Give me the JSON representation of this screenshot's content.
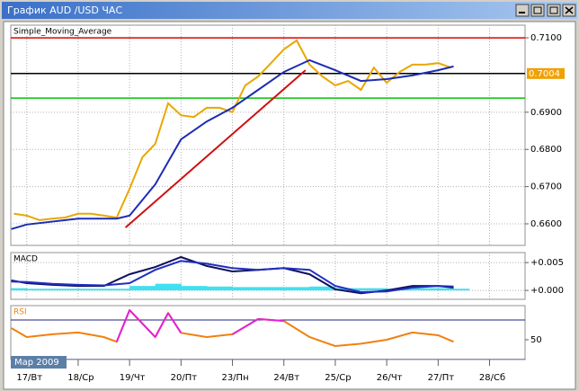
{
  "window": {
    "title": "График AUD /USD ЧАС"
  },
  "chart_data": [
    {
      "type": "line",
      "title": "Simple_Moving_Average",
      "period_label": "Мар 2009",
      "grid": true,
      "xlim": [
        -0.31,
        9.69
      ],
      "xticks": [
        {
          "value": 0,
          "label": "17/Вт"
        },
        {
          "value": 1,
          "label": "18/Ср"
        },
        {
          "value": 2,
          "label": "19/Чт"
        },
        {
          "value": 3,
          "label": "20/Пт"
        },
        {
          "value": 4,
          "label": "23/Пн"
        },
        {
          "value": 5,
          "label": "24/Вт"
        },
        {
          "value": 6,
          "label": "25/Ср"
        },
        {
          "value": 7,
          "label": "26/Чт"
        },
        {
          "value": 8,
          "label": "27/Пт"
        },
        {
          "value": 9,
          "label": "28/Сб"
        }
      ],
      "ylim": [
        0.6542,
        0.7134
      ],
      "yticks": [
        {
          "value": 0.71,
          "label": "0.7100"
        },
        {
          "value": 0.69,
          "label": "0.6900"
        },
        {
          "value": 0.68,
          "label": "0.6800"
        },
        {
          "value": 0.67,
          "label": "0.6700"
        },
        {
          "value": 0.66,
          "label": "0.6600"
        }
      ],
      "hlines": [
        {
          "value": 0.71,
          "color": "#e00000"
        },
        {
          "value": 0.7004,
          "color": "#000000",
          "marker": true
        },
        {
          "value": 0.6938,
          "color": "#00c000"
        }
      ],
      "series": [
        {
          "color": "#e8a800",
          "style": "line",
          "x": [
            -0.25,
            0,
            0.25,
            0.5,
            0.75,
            1,
            1.25,
            1.5,
            1.75,
            2,
            2.25,
            2.5,
            2.75,
            3,
            3.25,
            3.5,
            3.75,
            4,
            4.25,
            4.5,
            4.75,
            5,
            5.25,
            5.5,
            5.75,
            6,
            6.25,
            6.5,
            6.75,
            7,
            7.25,
            7.5,
            7.75,
            8,
            8.25
          ],
          "values": [
            0.6627,
            0.6622,
            0.661,
            0.6614,
            0.6617,
            0.6627,
            0.6627,
            0.6622,
            0.6617,
            0.6694,
            0.6779,
            0.6815,
            0.6924,
            0.6892,
            0.6887,
            0.6912,
            0.6912,
            0.69,
            0.6972,
            0.6996,
            0.7032,
            0.7069,
            0.7093,
            0.7028,
            0.6996,
            0.6972,
            0.6984,
            0.696,
            0.702,
            0.6979,
            0.7008,
            0.7028,
            0.7028,
            0.7032,
            0.702
          ]
        },
        {
          "color": "#1c2cb4",
          "style": "line",
          "x": [
            -0.3,
            0,
            1,
            1.75,
            2,
            2.5,
            3,
            3.5,
            4,
            4.5,
            5,
            5.5,
            6,
            6.5,
            7,
            7.5,
            8,
            8.3
          ],
          "values": [
            0.6586,
            0.6598,
            0.6614,
            0.6614,
            0.6622,
            0.6706,
            0.6827,
            0.6875,
            0.6912,
            0.696,
            0.7008,
            0.704,
            0.7013,
            0.6984,
            0.6989,
            0.6999,
            0.7013,
            0.7023
          ]
        },
        {
          "color": "#d01010",
          "style": "line",
          "x": [
            1.92,
            5.42
          ],
          "values": [
            0.659,
            0.7013
          ]
        }
      ]
    },
    {
      "type": "line",
      "title": "MACD",
      "grid": true,
      "ylim": [
        -0.0016,
        0.0068
      ],
      "yticks": [
        {
          "value": 0.005,
          "label": "+0.005"
        },
        {
          "value": 0,
          "label": "+0.000"
        }
      ],
      "x": [
        -0.3,
        0,
        0.5,
        1,
        1.5,
        2,
        2.5,
        3,
        3.5,
        4,
        4.5,
        5,
        5.5,
        6,
        6.5,
        7,
        7.5,
        8,
        8.3
      ],
      "series": [
        {
          "color": "#40e0f0",
          "style": "bar",
          "values": [
            0.0004,
            0.0003,
            0.0003,
            0.0003,
            0.0003,
            0.0008,
            0.0012,
            0.0008,
            0.0007,
            0.0006,
            0.0006,
            0.0006,
            0.0007,
            0.0004,
            0.0004,
            0.0003,
            0.0004,
            0.0004,
            0.0003
          ]
        },
        {
          "color": "#101060",
          "style": "line",
          "values": [
            0.0018,
            0.0013,
            0.001,
            0.0008,
            0.0008,
            0.0029,
            0.0042,
            0.006,
            0.0044,
            0.0034,
            0.0037,
            0.004,
            0.0029,
            0.0002,
            -0.0005,
            0,
            0.0008,
            0.0008,
            0.0005
          ]
        },
        {
          "color": "#2030c0",
          "style": "line",
          "values": [
            0.0016,
            0.0015,
            0.0012,
            0.001,
            0.0009,
            0.0013,
            0.0037,
            0.0053,
            0.0048,
            0.004,
            0.0037,
            0.004,
            0.0037,
            0.0008,
            -0.0003,
            -0.0002,
            0.0005,
            0.0008,
            0.0007
          ]
        }
      ]
    },
    {
      "type": "line",
      "title": "RSI",
      "grid": false,
      "ylim": [
        30,
        84.5
      ],
      "yticks": [
        50
      ],
      "hlines": [
        {
          "value": 70,
          "color": "#202080"
        },
        {
          "value": 30,
          "color": "#202080"
        }
      ],
      "overbought_color": "#e020e0",
      "x": [
        -0.3,
        0,
        0.5,
        1,
        1.5,
        1.75,
        2,
        2.5,
        2.75,
        3,
        3.5,
        4,
        4.5,
        5,
        5.5,
        6,
        6.5,
        7,
        7.5,
        8,
        8.3
      ],
      "series": [
        {
          "color": "#f08010",
          "style": "line",
          "values": [
            61.8,
            52.7,
            55.5,
            57.3,
            52.7,
            48,
            80,
            52.7,
            77,
            57,
            52.7,
            55.5,
            71,
            69,
            52.7,
            43.6,
            46,
            50,
            57.3,
            54.5,
            48
          ]
        }
      ]
    }
  ]
}
